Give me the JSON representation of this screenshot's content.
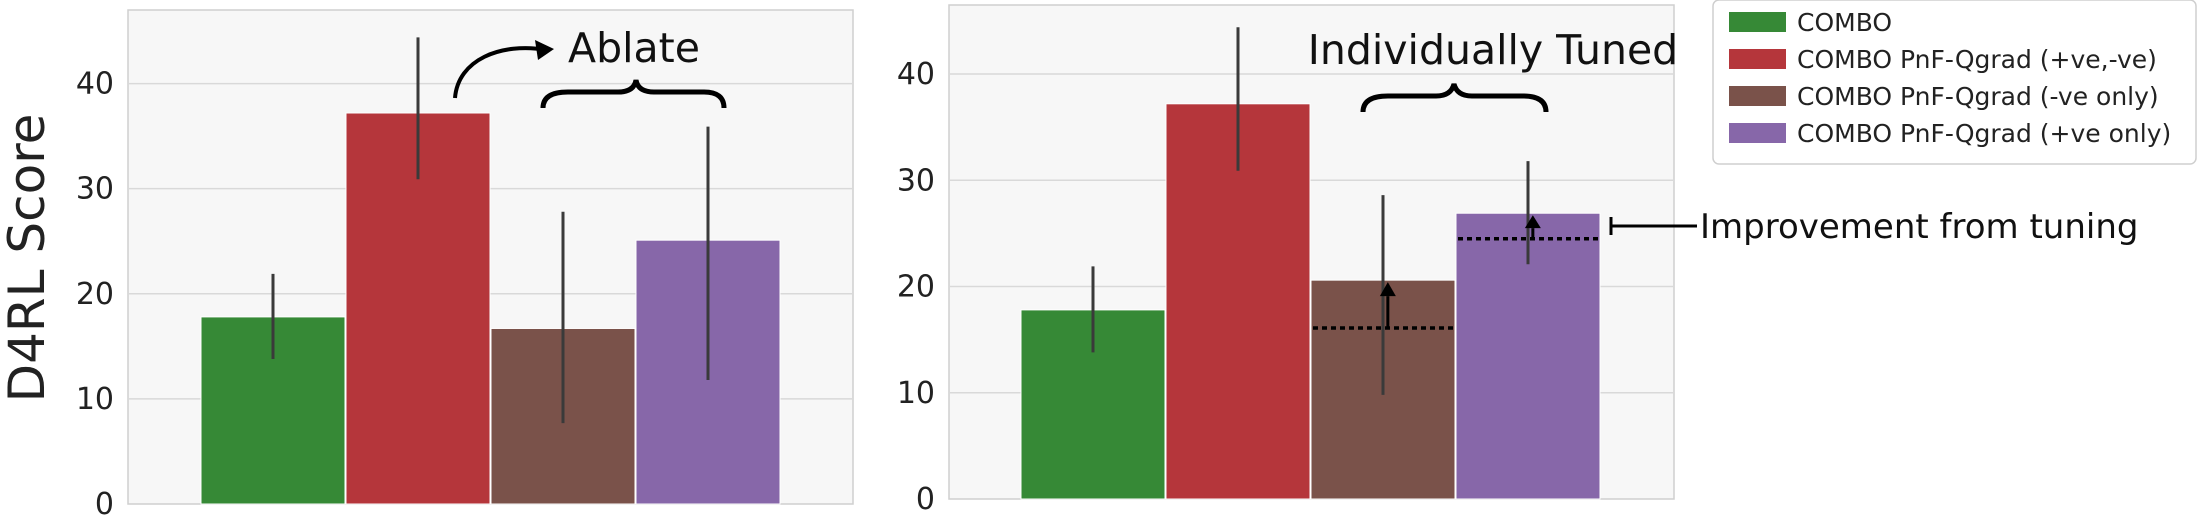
{
  "chart_data": [
    {
      "type": "bar",
      "ylabel": "D4RL Score",
      "ylim": [
        0,
        47
      ],
      "yticks": [
        0,
        10,
        20,
        30,
        40
      ],
      "grid": true,
      "bars": [
        {
          "series": "COMBO",
          "value": 17.8,
          "err_low": 13.8,
          "err_high": 21.9
        },
        {
          "series": "COMBO PnF-Qgrad (+ve,-ve)",
          "value": 37.2,
          "err_low": 30.9,
          "err_high": 44.4
        },
        {
          "series": "COMBO PnF-Qgrad (-ve only)",
          "value": 16.7,
          "err_low": 7.7,
          "err_high": 27.8
        },
        {
          "series": "COMBO PnF-Qgrad (+ve only)",
          "value": 25.1,
          "err_low": 11.8,
          "err_high": 35.9
        }
      ],
      "annotations": {
        "brace_label": "Ablate"
      }
    },
    {
      "type": "bar",
      "ylabel": "",
      "ylim": [
        0,
        46.5
      ],
      "yticks": [
        0,
        10,
        20,
        30,
        40
      ],
      "grid": true,
      "bars": [
        {
          "series": "COMBO",
          "value": 17.8,
          "err_low": 13.8,
          "err_high": 21.9
        },
        {
          "series": "COMBO PnF-Qgrad (+ve,-ve)",
          "value": 37.2,
          "err_low": 30.9,
          "err_high": 44.4
        },
        {
          "series": "COMBO PnF-Qgrad (-ve only)",
          "value": 20.6,
          "err_low": 9.8,
          "err_high": 28.6,
          "untuned_value": 16.1
        },
        {
          "series": "COMBO PnF-Qgrad (+ve only)",
          "value": 26.9,
          "err_low": 22.1,
          "err_high": 31.8,
          "untuned_value": 24.5
        }
      ],
      "annotations": {
        "brace_label": "Individually Tuned",
        "side_label": "Improvement from tuning"
      }
    }
  ],
  "legend": [
    {
      "label": "COMBO",
      "color": "#368936"
    },
    {
      "label": "COMBO PnF-Qgrad (+ve,-ve)",
      "color": "#B5363B"
    },
    {
      "label": "COMBO PnF-Qgrad (-ve only)",
      "color": "#7A524A"
    },
    {
      "label": "COMBO PnF-Qgrad (+ve only)",
      "color": "#8767A9"
    }
  ]
}
